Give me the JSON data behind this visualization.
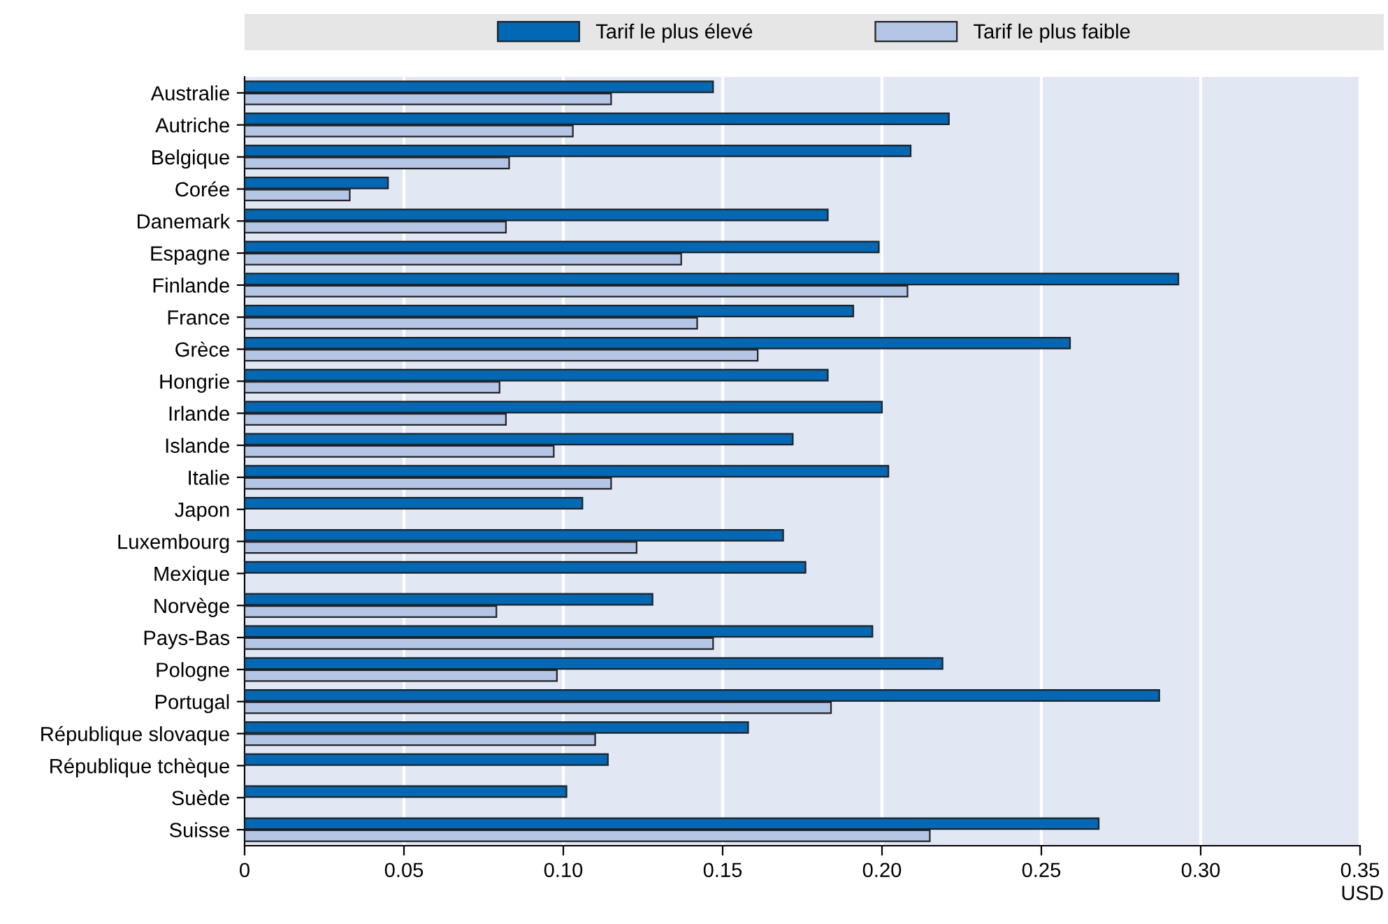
{
  "chart_data": {
    "type": "bar",
    "orientation": "horizontal",
    "xlabel": "USD",
    "categories": [
      "Australie",
      "Autriche",
      "Belgique",
      "Corée",
      "Danemark",
      "Espagne",
      "Finlande",
      "France",
      "Grèce",
      "Hongrie",
      "Irlande",
      "Islande",
      "Italie",
      "Japon",
      "Luxembourg",
      "Mexique",
      "Norvège",
      "Pays-Bas",
      "Pologne",
      "Portugal",
      "République slovaque",
      "République tchèque",
      "Suède",
      "Suisse"
    ],
    "series": [
      {
        "name": "Tarif le plus élevé",
        "color": "#0068b4",
        "values": [
          0.147,
          0.221,
          0.209,
          0.045,
          0.183,
          0.199,
          0.293,
          0.191,
          0.259,
          0.183,
          0.2,
          0.172,
          0.202,
          0.106,
          0.169,
          0.176,
          0.128,
          0.197,
          0.219,
          0.287,
          0.158,
          0.114,
          0.101,
          0.268
        ]
      },
      {
        "name": "Tarif le plus faible",
        "color": "#b4c6e6",
        "values": [
          0.115,
          0.103,
          0.083,
          0.033,
          0.082,
          0.137,
          0.208,
          0.142,
          0.161,
          0.08,
          0.082,
          0.097,
          0.115,
          null,
          0.123,
          null,
          0.079,
          0.147,
          0.098,
          0.184,
          0.11,
          null,
          null,
          0.215
        ]
      }
    ],
    "xlim": [
      0,
      0.35
    ],
    "xticks": [
      0,
      0.05,
      {
        "value": 0.1,
        "label": "0.10"
      },
      0.15,
      {
        "value": 0.2,
        "label": "0.20"
      },
      0.25,
      {
        "value": 0.3,
        "label": "0.30"
      },
      0.35
    ],
    "grid": "x",
    "legend": "top"
  }
}
